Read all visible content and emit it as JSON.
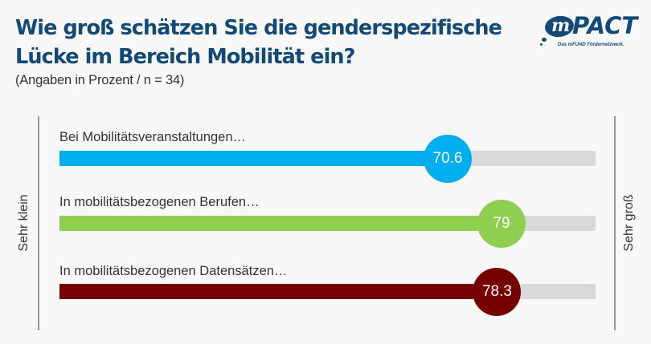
{
  "header": {
    "title": "Wie groß schätzen Sie die genderspezifische Lücke im Bereich Mobilität ein?",
    "subtitle": "(Angaben in Prozent / n = 34)"
  },
  "logo": {
    "letter": "m",
    "name": "PACT",
    "tagline": "Das mFUND Fördernetzwerk."
  },
  "chart_data": {
    "type": "bar",
    "orientation": "horizontal",
    "title": "Wie groß schätzen Sie die genderspezifische Lücke im Bereich Mobilität ein?",
    "subtitle": "(Angaben in Prozent / n = 34)",
    "categories": [
      "Bei Mobilitätsveranstaltungen…",
      "In mobilitätsbezogenen Berufen…",
      "In mobilitätsbezogenen Datensätzen…"
    ],
    "values": [
      70.6,
      79,
      78.3
    ],
    "value_labels": [
      "70.6",
      "79",
      "78.3"
    ],
    "colors": [
      "#00adef",
      "#8fcf4f",
      "#760000"
    ],
    "track_color": "#d9d9d9",
    "scale_min_label": "Sehr klein",
    "scale_max_label": "Sehr groß",
    "xlim": [
      0,
      100
    ],
    "xlabel": "",
    "ylabel": "",
    "grid": false,
    "legend": "none"
  }
}
